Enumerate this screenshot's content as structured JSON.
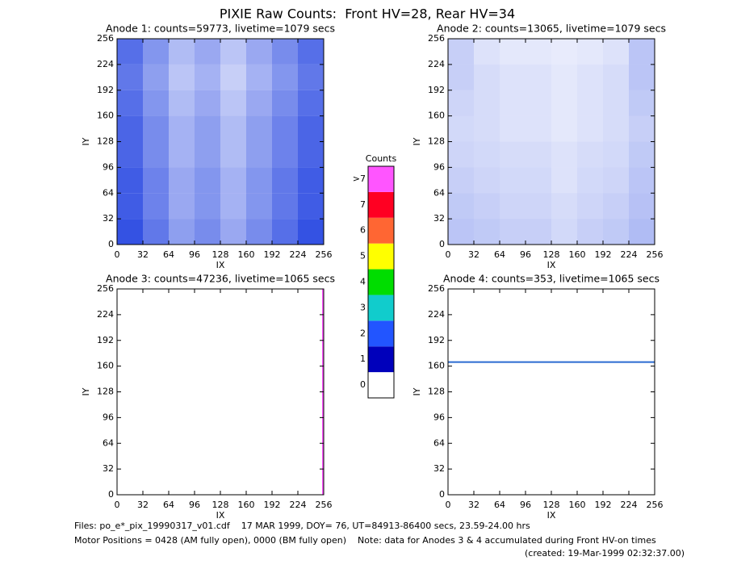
{
  "title": "PIXIE Raw Counts:  Front HV=28, Rear HV=34",
  "chart_data": [
    {
      "type": "heatmap",
      "title": "Anode 1: counts=59773, livetime=1079 secs",
      "xlabel": "IX",
      "ylabel": "IY",
      "xlim": [
        0,
        256
      ],
      "ylim": [
        0,
        256
      ],
      "xticks": [
        0,
        32,
        64,
        96,
        128,
        160,
        192,
        224,
        256
      ],
      "yticks": [
        0,
        32,
        64,
        96,
        128,
        160,
        192,
        224,
        256
      ],
      "color": "#1e3fe0",
      "cells": [
        [
          0.75,
          0.55,
          0.35,
          0.45,
          0.3,
          0.45,
          0.6,
          0.75
        ],
        [
          0.7,
          0.5,
          0.3,
          0.4,
          0.25,
          0.4,
          0.55,
          0.7
        ],
        [
          0.75,
          0.55,
          0.35,
          0.45,
          0.3,
          0.45,
          0.6,
          0.75
        ],
        [
          0.8,
          0.6,
          0.4,
          0.5,
          0.35,
          0.5,
          0.65,
          0.8
        ],
        [
          0.8,
          0.6,
          0.4,
          0.5,
          0.35,
          0.5,
          0.65,
          0.8
        ],
        [
          0.85,
          0.65,
          0.45,
          0.55,
          0.4,
          0.55,
          0.7,
          0.85
        ],
        [
          0.85,
          0.65,
          0.45,
          0.55,
          0.4,
          0.55,
          0.7,
          0.85
        ],
        [
          0.9,
          0.7,
          0.5,
          0.6,
          0.45,
          0.6,
          0.75,
          0.9
        ]
      ]
    },
    {
      "type": "heatmap",
      "title": "Anode 2: counts=13065, livetime=1079 secs",
      "xlabel": "IX",
      "ylabel": "IY",
      "xlim": [
        0,
        256
      ],
      "ylim": [
        0,
        256
      ],
      "xticks": [
        0,
        32,
        64,
        96,
        128,
        160,
        192,
        224,
        256
      ],
      "yticks": [
        0,
        32,
        64,
        96,
        128,
        160,
        192,
        224,
        256
      ],
      "color": "#1e3fe0",
      "cells": [
        [
          0.25,
          0.15,
          0.12,
          0.12,
          0.1,
          0.12,
          0.15,
          0.3
        ],
        [
          0.25,
          0.18,
          0.15,
          0.15,
          0.12,
          0.15,
          0.18,
          0.3
        ],
        [
          0.22,
          0.18,
          0.15,
          0.15,
          0.12,
          0.15,
          0.18,
          0.28
        ],
        [
          0.2,
          0.18,
          0.15,
          0.15,
          0.12,
          0.15,
          0.18,
          0.25
        ],
        [
          0.22,
          0.2,
          0.18,
          0.18,
          0.15,
          0.18,
          0.2,
          0.28
        ],
        [
          0.25,
          0.22,
          0.2,
          0.2,
          0.15,
          0.2,
          0.22,
          0.3
        ],
        [
          0.28,
          0.25,
          0.22,
          0.22,
          0.18,
          0.22,
          0.25,
          0.32
        ],
        [
          0.3,
          0.28,
          0.25,
          0.25,
          0.2,
          0.25,
          0.28,
          0.35
        ]
      ]
    },
    {
      "type": "heatmap",
      "title": "Anode 3: counts=47236, livetime=1065 secs",
      "xlabel": "IX",
      "ylabel": "IY",
      "xlim": [
        0,
        256
      ],
      "ylim": [
        0,
        256
      ],
      "xticks": [
        0,
        32,
        64,
        96,
        128,
        160,
        192,
        224,
        256
      ],
      "yticks": [
        0,
        32,
        64,
        96,
        128,
        160,
        192,
        224,
        256
      ],
      "color": "#1e3fe0",
      "cells": [
        [
          0,
          0,
          0,
          0,
          0,
          0,
          0,
          0
        ],
        [
          0,
          0,
          0,
          0,
          0,
          0,
          0,
          0
        ],
        [
          0,
          0,
          0,
          0,
          0,
          0,
          0,
          0
        ],
        [
          0,
          0,
          0,
          0,
          0,
          0,
          0,
          0
        ],
        [
          0,
          0,
          0,
          0,
          0,
          0,
          0,
          0
        ],
        [
          0,
          0,
          0,
          0,
          0,
          0,
          0,
          0
        ],
        [
          0,
          0,
          0,
          0,
          0,
          0,
          0,
          0
        ],
        [
          0,
          0,
          0,
          0,
          0,
          0,
          0,
          0
        ]
      ],
      "lines": [
        {
          "orient": "vertical",
          "at": 255,
          "color": "#ff55ff"
        }
      ]
    },
    {
      "type": "heatmap",
      "title": "Anode 4: counts=353, livetime=1065 secs",
      "xlabel": "IX",
      "ylabel": "IY",
      "xlim": [
        0,
        256
      ],
      "ylim": [
        0,
        256
      ],
      "xticks": [
        0,
        32,
        64,
        96,
        128,
        160,
        192,
        224,
        256
      ],
      "yticks": [
        0,
        32,
        64,
        96,
        128,
        160,
        192,
        224,
        256
      ],
      "color": "#1e3fe0",
      "cells": [
        [
          0,
          0,
          0,
          0,
          0,
          0,
          0,
          0
        ],
        [
          0,
          0,
          0,
          0,
          0,
          0,
          0,
          0
        ],
        [
          0,
          0,
          0,
          0,
          0,
          0,
          0,
          0
        ],
        [
          0,
          0,
          0,
          0,
          0,
          0,
          0,
          0
        ],
        [
          0,
          0,
          0,
          0,
          0,
          0,
          0,
          0
        ],
        [
          0,
          0,
          0,
          0,
          0,
          0,
          0,
          0
        ],
        [
          0,
          0,
          0,
          0,
          0,
          0,
          0,
          0
        ],
        [
          0,
          0,
          0,
          0,
          0,
          0,
          0,
          0
        ]
      ],
      "lines": [
        {
          "orient": "horizontal",
          "at": 165,
          "color": "#2a6ad0"
        }
      ]
    }
  ],
  "colorbar": {
    "title": "Counts",
    "ticks": [
      0,
      1,
      2,
      3,
      4,
      5,
      6,
      7,
      {
        "value": 8,
        "label": ">7"
      }
    ],
    "colors": [
      "#ffffff",
      "#0000bb",
      "#2255ff",
      "#11cccc",
      "#00dd00",
      "#ffff00",
      "#ff6633",
      "#ff0022",
      "#ff55ff"
    ]
  },
  "footer": [
    "Files: po_e*_pix_19990317_v01.cdf    17 MAR 1999, DOY= 76, UT=84913-86400 secs, 23.59-24.00 hrs",
    "Motor Positions = 0428 (AM fully open), 0000 (BM fully open)    Note: data for Anodes 3 & 4 accumulated during Front HV-on times",
    "(created: 19-Mar-1999 02:32:37.00)"
  ]
}
